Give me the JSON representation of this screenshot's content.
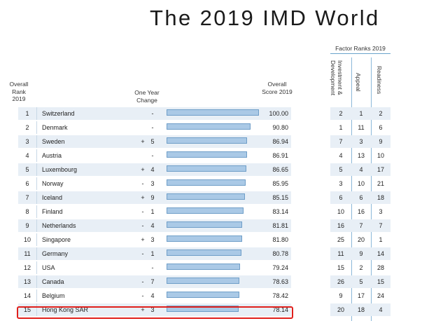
{
  "title": "The 2019 IMD World",
  "headers": {
    "rank": "Overall Rank 2019",
    "change": "One Year Change",
    "score": "Overall Score 2019",
    "factor_group": "Factor Ranks 2019",
    "factors": [
      "Investment & Development",
      "Appeal",
      "Readiness"
    ]
  },
  "rows": [
    {
      "rank": "1",
      "country": "Switzerland",
      "sign": "",
      "change": "-",
      "bar": 1.0,
      "score": "100.00",
      "f": [
        "2",
        "1",
        "2"
      ]
    },
    {
      "rank": "2",
      "country": "Denmark",
      "sign": "",
      "change": "-",
      "bar": 0.908,
      "score": "90.80",
      "f": [
        "1",
        "11",
        "6"
      ]
    },
    {
      "rank": "3",
      "country": "Sweden",
      "sign": "+",
      "change": "5",
      "bar": 0.8694,
      "score": "86.94",
      "f": [
        "7",
        "3",
        "9"
      ]
    },
    {
      "rank": "4",
      "country": "Austria",
      "sign": "",
      "change": "-",
      "bar": 0.8691,
      "score": "86.91",
      "f": [
        "4",
        "13",
        "10"
      ]
    },
    {
      "rank": "5",
      "country": "Luxembourg",
      "sign": "+",
      "change": "4",
      "bar": 0.8665,
      "score": "86.65",
      "f": [
        "5",
        "4",
        "17"
      ]
    },
    {
      "rank": "6",
      "country": "Norway",
      "sign": "-",
      "change": "3",
      "bar": 0.8595,
      "score": "85.95",
      "f": [
        "3",
        "10",
        "21"
      ]
    },
    {
      "rank": "7",
      "country": "Iceland",
      "sign": "+",
      "change": "9",
      "bar": 0.8515,
      "score": "85.15",
      "f": [
        "6",
        "6",
        "18"
      ]
    },
    {
      "rank": "8",
      "country": "Finland",
      "sign": "-",
      "change": "1",
      "bar": 0.8314,
      "score": "83.14",
      "f": [
        "10",
        "16",
        "3"
      ]
    },
    {
      "rank": "9",
      "country": "Netherlands",
      "sign": "-",
      "change": "4",
      "bar": 0.8181,
      "score": "81.81",
      "f": [
        "16",
        "7",
        "7"
      ]
    },
    {
      "rank": "10",
      "country": "Singapore",
      "sign": "+",
      "change": "3",
      "bar": 0.818,
      "score": "81.80",
      "f": [
        "25",
        "20",
        "1"
      ]
    },
    {
      "rank": "11",
      "country": "Germany",
      "sign": "-",
      "change": "1",
      "bar": 0.8078,
      "score": "80.78",
      "f": [
        "11",
        "9",
        "14"
      ]
    },
    {
      "rank": "12",
      "country": "USA",
      "sign": "",
      "change": "-",
      "bar": 0.7924,
      "score": "79.24",
      "f": [
        "15",
        "2",
        "28"
      ]
    },
    {
      "rank": "13",
      "country": "Canada",
      "sign": "-",
      "change": "7",
      "bar": 0.7863,
      "score": "78.63",
      "f": [
        "26",
        "5",
        "15"
      ]
    },
    {
      "rank": "14",
      "country": "Belgium",
      "sign": "-",
      "change": "4",
      "bar": 0.7842,
      "score": "78.42",
      "f": [
        "9",
        "17",
        "24"
      ]
    },
    {
      "rank": "15",
      "country": "Hong Kong SAR",
      "sign": "+",
      "change": "3",
      "bar": 0.7814,
      "score": "78.14",
      "f": [
        "20",
        "18",
        "4"
      ]
    }
  ],
  "highlight_color": "#e0201c",
  "bar_color": "#aac9e6"
}
